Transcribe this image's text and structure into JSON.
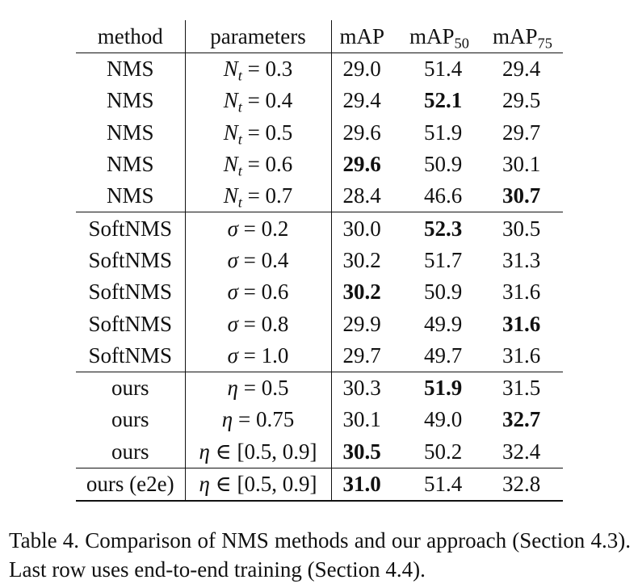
{
  "table": {
    "headers": {
      "method": "method",
      "parameters": "parameters",
      "map": "mAP",
      "map50_base": "mAP",
      "map50_sub": "50",
      "map75_base": "mAP",
      "map75_sub": "75"
    },
    "groups": [
      {
        "rows": [
          {
            "method": "NMS",
            "param_sym": "N",
            "param_sub": "t",
            "param_op": "=",
            "param_val": "0.3",
            "map": "29.0",
            "map50": "51.4",
            "map75": "29.4",
            "bold": []
          },
          {
            "method": "NMS",
            "param_sym": "N",
            "param_sub": "t",
            "param_op": "=",
            "param_val": "0.4",
            "map": "29.4",
            "map50": "52.1",
            "map75": "29.5",
            "bold": [
              "map50"
            ]
          },
          {
            "method": "NMS",
            "param_sym": "N",
            "param_sub": "t",
            "param_op": "=",
            "param_val": "0.5",
            "map": "29.6",
            "map50": "51.9",
            "map75": "29.7",
            "bold": []
          },
          {
            "method": "NMS",
            "param_sym": "N",
            "param_sub": "t",
            "param_op": "=",
            "param_val": "0.6",
            "map": "29.6",
            "map50": "50.9",
            "map75": "30.1",
            "bold": [
              "map"
            ]
          },
          {
            "method": "NMS",
            "param_sym": "N",
            "param_sub": "t",
            "param_op": "=",
            "param_val": "0.7",
            "map": "28.4",
            "map50": "46.6",
            "map75": "30.7",
            "bold": [
              "map75"
            ]
          }
        ]
      },
      {
        "rows": [
          {
            "method": "SoftNMS",
            "param_sym": "σ",
            "param_sub": "",
            "param_op": "=",
            "param_val": "0.2",
            "map": "30.0",
            "map50": "52.3",
            "map75": "30.5",
            "bold": [
              "map50"
            ]
          },
          {
            "method": "SoftNMS",
            "param_sym": "σ",
            "param_sub": "",
            "param_op": "=",
            "param_val": "0.4",
            "map": "30.2",
            "map50": "51.7",
            "map75": "31.3",
            "bold": []
          },
          {
            "method": "SoftNMS",
            "param_sym": "σ",
            "param_sub": "",
            "param_op": "=",
            "param_val": "0.6",
            "map": "30.2",
            "map50": "50.9",
            "map75": "31.6",
            "bold": [
              "map"
            ]
          },
          {
            "method": "SoftNMS",
            "param_sym": "σ",
            "param_sub": "",
            "param_op": "=",
            "param_val": "0.8",
            "map": "29.9",
            "map50": "49.9",
            "map75": "31.6",
            "bold": [
              "map75"
            ]
          },
          {
            "method": "SoftNMS",
            "param_sym": "σ",
            "param_sub": "",
            "param_op": "=",
            "param_val": "1.0",
            "map": "29.7",
            "map50": "49.7",
            "map75": "31.6",
            "bold": []
          }
        ]
      },
      {
        "rows": [
          {
            "method": "ours",
            "param_sym": "η",
            "param_sub": "",
            "param_op": "=",
            "param_val": "0.5",
            "map": "30.3",
            "map50": "51.9",
            "map75": "31.5",
            "bold": [
              "map50"
            ]
          },
          {
            "method": "ours",
            "param_sym": "η",
            "param_sub": "",
            "param_op": "=",
            "param_val": "0.75",
            "map": "30.1",
            "map50": "49.0",
            "map75": "32.7",
            "bold": [
              "map75"
            ]
          },
          {
            "method": "ours",
            "param_sym": "η",
            "param_sub": "",
            "param_op": "∈",
            "param_val": "[0.5, 0.9]",
            "map": "30.5",
            "map50": "50.2",
            "map75": "32.4",
            "bold": [
              "map"
            ]
          }
        ]
      },
      {
        "rows": [
          {
            "method": "ours (e2e)",
            "param_sym": "η",
            "param_sub": "",
            "param_op": "∈",
            "param_val": "[0.5, 0.9]",
            "map": "31.0",
            "map50": "51.4",
            "map75": "32.8",
            "bold": [
              "map"
            ]
          }
        ]
      }
    ]
  },
  "caption": "Table 4. Comparison of NMS methods and our approach (Section 4.3). Last row uses end-to-end training (Section 4.4)."
}
